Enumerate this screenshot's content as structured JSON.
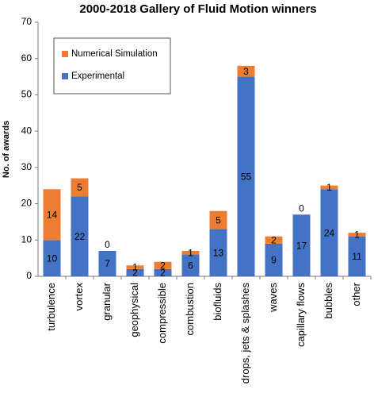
{
  "chart_data": {
    "type": "stacked_bar",
    "title": "2000-2018 Gallery of Fluid Motion winners",
    "y_label": "No. of awards",
    "categories": [
      "turbulence",
      "vortex",
      "granular",
      "geophysical",
      "compressible",
      "combustion",
      "biofluids",
      "drops, jets & splashes",
      "waves",
      "capillary flows",
      "bubbles",
      "other"
    ],
    "series": [
      {
        "name": "Experimental",
        "color": "#4472c4",
        "values": [
          10,
          22,
          7,
          2,
          2,
          6,
          13,
          55,
          9,
          17,
          24,
          11
        ]
      },
      {
        "name": "Numerical Simulation",
        "color": "#ed7d31",
        "values": [
          14,
          5,
          0,
          1,
          2,
          1,
          5,
          3,
          2,
          0,
          1,
          1
        ]
      }
    ],
    "ylim": [
      0,
      70
    ],
    "yticks": [
      0,
      10,
      20,
      30,
      40,
      50,
      60,
      70
    ],
    "grid": false
  }
}
